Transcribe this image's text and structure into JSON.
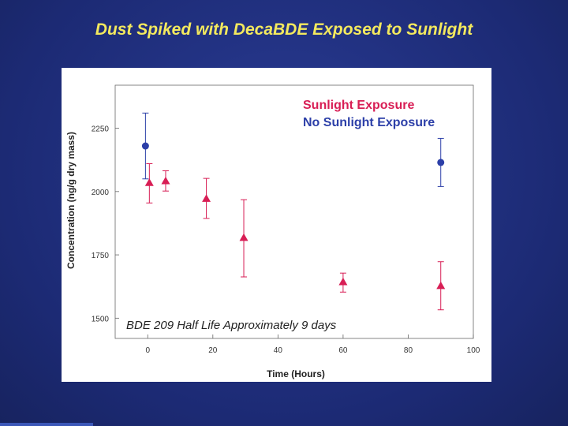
{
  "slide": {
    "title": "Dust Spiked with DecaBDE Exposed to Sunlight"
  },
  "chart_data": {
    "type": "scatter",
    "title": "Dust Spiked with DecaBDE Exposed to Sunlight",
    "xlabel": "Time (Hours)",
    "ylabel": "Concentration (ng/g dry mass)",
    "xlim": [
      -10,
      100
    ],
    "ylim": [
      1420,
      2420
    ],
    "x_ticks": [
      0,
      20,
      40,
      60,
      80,
      100
    ],
    "y_ticks": [
      1500,
      1750,
      2000,
      2250
    ],
    "grid": false,
    "legend_position": "top-right",
    "annotation": "BDE 209 Half Life Approximately 9 days",
    "series": [
      {
        "name": "Sunlight Exposure",
        "color": "#d81e55",
        "marker": "triangle",
        "points": [
          {
            "x": 0.5,
            "y": 2035,
            "err_low": 80,
            "err_high": 75
          },
          {
            "x": 5.5,
            "y": 2042,
            "err_low": 40,
            "err_high": 40
          },
          {
            "x": 18,
            "y": 1972,
            "err_low": 78,
            "err_high": 80
          },
          {
            "x": 29.5,
            "y": 1818,
            "err_low": 155,
            "err_high": 150
          },
          {
            "x": 60,
            "y": 1643,
            "err_low": 40,
            "err_high": 35
          },
          {
            "x": 90,
            "y": 1628,
            "err_low": 95,
            "err_high": 95
          }
        ]
      },
      {
        "name": "No Sunlight Exposure",
        "color": "#2c3fa8",
        "marker": "circle",
        "points": [
          {
            "x": -0.7,
            "y": 2180,
            "err_low": 130,
            "err_high": 130
          },
          {
            "x": 90,
            "y": 2115,
            "err_low": 95,
            "err_high": 95
          }
        ]
      }
    ]
  }
}
